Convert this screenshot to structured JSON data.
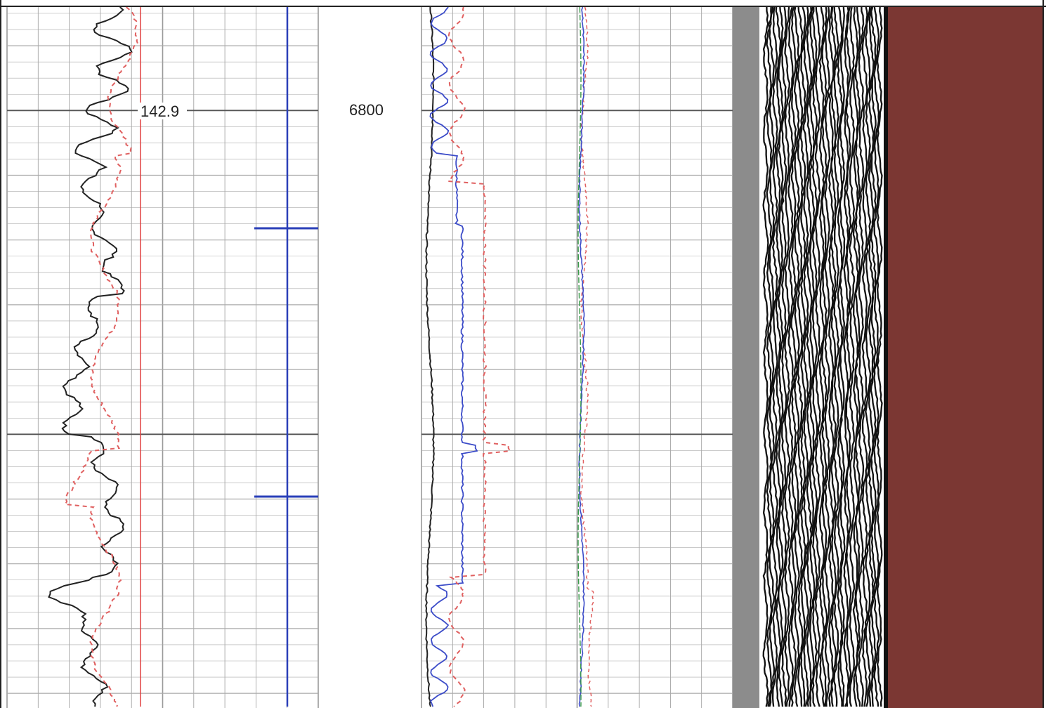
{
  "track_1": {
    "annotation": "142.9"
  },
  "depth_track": {
    "depth_label": "6800"
  }
}
